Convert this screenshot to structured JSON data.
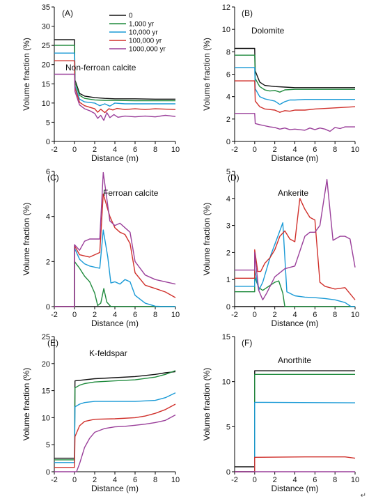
{
  "legend": [
    {
      "label": "0",
      "color": "#111111"
    },
    {
      "label": "1,000 yr",
      "color": "#1e8a3c"
    },
    {
      "label": "10,000 yr",
      "color": "#1a9ad6"
    },
    {
      "label": "100,000 yr",
      "color": "#d0302b"
    },
    {
      "label": "1000,000 yr",
      "color": "#9a3f9a"
    }
  ],
  "corner_mark": "↵",
  "chart_data": [
    {
      "type": "line",
      "panel": "(A)",
      "title": "Non-ferroan calcite",
      "xlabel": "Distance (m)",
      "ylabel": "Volume fraction (%)",
      "xlim": [
        -2,
        10
      ],
      "ylim": [
        0,
        35
      ],
      "xticks": [
        -2,
        0,
        2,
        4,
        6,
        8,
        10
      ],
      "yticks": [
        0,
        5,
        10,
        15,
        20,
        25,
        30,
        35
      ],
      "series": [
        {
          "name": "0",
          "color": "#111111",
          "x": [
            -2,
            0,
            0.05,
            0.5,
            1,
            2,
            3,
            4,
            6,
            8,
            10
          ],
          "y": [
            26.5,
            26.5,
            16,
            12.5,
            11.8,
            11.4,
            11.2,
            11.1,
            11.1,
            11,
            11
          ]
        },
        {
          "name": "1,000 yr",
          "color": "#1e8a3c",
          "x": [
            -2,
            0,
            0.05,
            0.5,
            1,
            2,
            3,
            4,
            6,
            8,
            10
          ],
          "y": [
            25,
            25,
            15.5,
            12,
            11.2,
            10.8,
            10.7,
            10.7,
            10.6,
            10.6,
            10.6
          ]
        },
        {
          "name": "10,000 yr",
          "color": "#1a9ad6",
          "x": [
            -2,
            0,
            0.05,
            0.5,
            1,
            2,
            2.5,
            3,
            3.5,
            4,
            5,
            6,
            8,
            10
          ],
          "y": [
            23,
            23,
            14.5,
            11,
            10.3,
            10,
            9.3,
            9.8,
            9.2,
            10,
            9.8,
            9.8,
            9.8,
            9.8
          ]
        },
        {
          "name": "100,000 yr",
          "color": "#d0302b",
          "x": [
            -2,
            0,
            0.05,
            0.5,
            1,
            1.5,
            2,
            2.3,
            2.6,
            3,
            3.4,
            3.8,
            4.2,
            5,
            6,
            7,
            8,
            10
          ],
          "y": [
            21,
            21,
            14,
            10.2,
            9.3,
            8.9,
            8.5,
            7.6,
            8.4,
            7.5,
            8.5,
            8.2,
            8.6,
            8.3,
            8.5,
            8.3,
            8.5,
            8.3
          ]
        },
        {
          "name": "1000,000 yr",
          "color": "#9a3f9a",
          "x": [
            -2,
            0,
            0.05,
            0.5,
            1,
            1.5,
            2,
            2.3,
            2.6,
            2.9,
            3.2,
            3.5,
            3.9,
            4.3,
            5,
            6,
            7,
            8,
            9,
            10
          ],
          "y": [
            17.5,
            17.5,
            13,
            9.5,
            8.5,
            8,
            7.3,
            6,
            6.8,
            5.5,
            7.5,
            6.2,
            7,
            6.3,
            6.6,
            6.4,
            6.6,
            6.4,
            6.8,
            6.5
          ]
        }
      ]
    },
    {
      "type": "line",
      "panel": "(B)",
      "title": "Dolomite",
      "xlabel": "Distance (m)",
      "ylabel": "Volume fraction (%)",
      "xlim": [
        -2,
        10
      ],
      "ylim": [
        0,
        12
      ],
      "xticks": [
        -2,
        0,
        2,
        4,
        6,
        8,
        10
      ],
      "yticks": [
        0,
        2,
        4,
        6,
        8,
        10,
        12
      ],
      "series": [
        {
          "name": "0",
          "color": "#111111",
          "x": [
            -2,
            0,
            0.05,
            0.5,
            1,
            2,
            3,
            4,
            6,
            8,
            10
          ],
          "y": [
            8.3,
            8.3,
            6.3,
            5.3,
            5,
            4.9,
            4.85,
            4.8,
            4.8,
            4.8,
            4.8
          ]
        },
        {
          "name": "1,000 yr",
          "color": "#1e8a3c",
          "x": [
            -2,
            0,
            0.05,
            0.5,
            1,
            1.5,
            2,
            2.5,
            3,
            4,
            6,
            8,
            10
          ],
          "y": [
            7.7,
            7.7,
            5.6,
            4.9,
            4.6,
            4.5,
            4.55,
            4.4,
            4.6,
            4.65,
            4.65,
            4.65,
            4.65
          ]
        },
        {
          "name": "10,000 yr",
          "color": "#1a9ad6",
          "x": [
            -2,
            0,
            0.05,
            0.5,
            1,
            1.5,
            2,
            2.5,
            3,
            3.5,
            4,
            5,
            6,
            8,
            10
          ],
          "y": [
            6.6,
            6.6,
            4.7,
            4,
            3.8,
            3.7,
            3.6,
            3.3,
            3.55,
            3.7,
            3.7,
            3.75,
            3.75,
            3.75,
            3.75
          ]
        },
        {
          "name": "100,000 yr",
          "color": "#d0302b",
          "x": [
            -2,
            0,
            0.05,
            0.5,
            1,
            1.5,
            2,
            2.5,
            3,
            3.5,
            4,
            5,
            6,
            8,
            10
          ],
          "y": [
            5.4,
            5.4,
            3.6,
            3.1,
            2.9,
            2.85,
            2.8,
            2.6,
            2.75,
            2.7,
            2.8,
            2.8,
            2.9,
            3,
            3.1
          ]
        },
        {
          "name": "1000,000 yr",
          "color": "#9a3f9a",
          "x": [
            -2,
            0,
            0.05,
            0.5,
            1,
            1.5,
            2,
            2.5,
            3,
            3.5,
            4,
            5,
            5.5,
            6,
            6.5,
            7,
            7.5,
            8,
            8.5,
            9,
            10
          ],
          "y": [
            2.5,
            2.5,
            1.6,
            1.5,
            1.4,
            1.3,
            1.25,
            1.1,
            1.2,
            1.05,
            1.1,
            1.0,
            1.2,
            1.05,
            1.2,
            1.1,
            0.9,
            1.25,
            1.15,
            1.3,
            1.3
          ]
        }
      ]
    },
    {
      "type": "line",
      "panel": "(C)",
      "title": "Ferroan calcite",
      "xlabel": "Distance (m)",
      "ylabel": "Volume fraction (%)",
      "xlim": [
        -2,
        10
      ],
      "ylim": [
        0,
        6
      ],
      "xticks": [
        -2,
        0,
        2,
        4,
        6,
        8,
        10
      ],
      "yticks": [
        0,
        2,
        4,
        6
      ],
      "series": [
        {
          "name": "0",
          "color": "#111111",
          "x": [
            -2,
            10
          ],
          "y": [
            0,
            0
          ]
        },
        {
          "name": "1,000 yr",
          "color": "#1e8a3c",
          "x": [
            -2,
            0,
            0,
            0.5,
            1,
            1.5,
            2,
            2.3,
            2.6,
            2.9,
            3.2,
            3.6,
            4,
            10
          ],
          "y": [
            0,
            0,
            2,
            1.7,
            1.35,
            1.1,
            0.6,
            0.05,
            0.15,
            0.8,
            0.2,
            0,
            0,
            0
          ]
        },
        {
          "name": "10,000 yr",
          "color": "#1a9ad6",
          "x": [
            -2,
            0,
            0,
            0.5,
            1,
            1.5,
            2,
            2.5,
            2.85,
            3.3,
            3.6,
            4,
            4.5,
            5,
            5.5,
            6,
            7,
            8,
            9,
            10
          ],
          "y": [
            0,
            0,
            2.6,
            2.1,
            1.9,
            1.8,
            1.75,
            1.7,
            3.4,
            2.2,
            1.05,
            1.1,
            1.0,
            1.2,
            1.1,
            0.5,
            0.15,
            0.02,
            0,
            0
          ]
        },
        {
          "name": "100,000 yr",
          "color": "#d0302b",
          "x": [
            -2,
            0,
            0,
            0.5,
            1,
            1.5,
            2,
            2.5,
            2.85,
            3.5,
            4,
            4.5,
            5,
            5.5,
            6,
            7,
            8,
            9,
            10
          ],
          "y": [
            0,
            0,
            2.7,
            2.3,
            2.25,
            2.2,
            2.3,
            2.4,
            5.0,
            4.0,
            3.5,
            3.3,
            3.2,
            2.8,
            1.5,
            0.95,
            0.8,
            0.65,
            0.4
          ]
        },
        {
          "name": "1000,000 yr",
          "color": "#9a3f9a",
          "x": [
            -2,
            0,
            0,
            0.5,
            1,
            1.5,
            2,
            2.5,
            2.85,
            3.5,
            4,
            4.5,
            5,
            5.5,
            6,
            7,
            8,
            9,
            10
          ],
          "y": [
            0,
            0,
            2.75,
            2.5,
            2.9,
            3.0,
            3.0,
            3.0,
            5.95,
            3.8,
            3.6,
            3.7,
            3.5,
            3.3,
            2.0,
            1.4,
            1.2,
            1.1,
            1.0
          ]
        }
      ]
    },
    {
      "type": "line",
      "panel": "(D)",
      "title": "Ankerite",
      "xlabel": "Distance (m)",
      "ylabel": "Volume fraction (%)",
      "xlim": [
        -2,
        10
      ],
      "ylim": [
        0,
        5
      ],
      "xticks": [
        -2,
        0,
        2,
        4,
        6,
        8,
        10
      ],
      "yticks": [
        0,
        1,
        2,
        3,
        4,
        5
      ],
      "series": [
        {
          "name": "0",
          "color": "#111111",
          "x": [
            -2,
            10
          ],
          "y": [
            0,
            0
          ]
        },
        {
          "name": "1,000 yr",
          "color": "#1e8a3c",
          "x": [
            -2,
            0,
            0,
            0.4,
            0.8,
            1.2,
            1.6,
            2,
            2.4,
            2.8,
            3,
            10
          ],
          "y": [
            0.55,
            0.55,
            1.1,
            0.7,
            0.6,
            0.7,
            0.8,
            0.9,
            0.95,
            0.5,
            0,
            0
          ]
        },
        {
          "name": "10,000 yr",
          "color": "#1a9ad6",
          "x": [
            -2,
            0,
            0,
            0.4,
            0.8,
            1.2,
            1.6,
            2,
            2.5,
            2.8,
            3.2,
            4,
            5,
            6,
            7,
            8,
            9,
            9.6,
            10
          ],
          "y": [
            0.75,
            0.75,
            1.4,
            0.6,
            0.9,
            1.4,
            1.9,
            2.3,
            2.8,
            3.1,
            0.55,
            0.4,
            0.35,
            0.33,
            0.3,
            0.25,
            0.15,
            0,
            0
          ]
        },
        {
          "name": "100,000 yr",
          "color": "#d0302b",
          "x": [
            -2,
            0,
            0,
            0.3,
            0.6,
            1,
            1.5,
            2,
            2.5,
            3,
            3.5,
            4,
            4.5,
            5,
            5.5,
            6,
            6.5,
            7,
            8,
            9,
            10
          ],
          "y": [
            1.05,
            1.05,
            2.1,
            1.3,
            1.3,
            1.6,
            1.8,
            2.1,
            2.6,
            2.8,
            2.5,
            2.4,
            4.0,
            3.6,
            3.3,
            3.2,
            0.9,
            0.75,
            0.65,
            0.7,
            0.25
          ]
        },
        {
          "name": "1000,000 yr",
          "color": "#9a3f9a",
          "x": [
            -2,
            0,
            0,
            0.4,
            0.8,
            1.2,
            2,
            3,
            4,
            5,
            5.5,
            6,
            6.5,
            7.2,
            7.8,
            8.5,
            9,
            9.5,
            10
          ],
          "y": [
            1.35,
            1.35,
            2.0,
            0.6,
            0.25,
            0.5,
            1.1,
            1.4,
            1.5,
            2.6,
            2.75,
            2.75,
            3.0,
            4.7,
            2.45,
            2.6,
            2.6,
            2.5,
            1.45
          ]
        }
      ]
    },
    {
      "type": "line",
      "panel": "(E)",
      "title": "K-feldspar",
      "xlabel": "Distance (m)",
      "ylabel": "Volume fraction (%)",
      "xlim": [
        -2,
        10
      ],
      "ylim": [
        0,
        25
      ],
      "xticks": [
        -2,
        0,
        2,
        4,
        6,
        8,
        10
      ],
      "yticks": [
        0,
        5,
        10,
        15,
        20,
        25
      ],
      "series": [
        {
          "name": "0",
          "color": "#111111",
          "x": [
            -2,
            0,
            0.05,
            1,
            2,
            4,
            6,
            8,
            9,
            10
          ],
          "y": [
            2.5,
            2.5,
            16.8,
            17,
            17.2,
            17.4,
            17.6,
            18,
            18.3,
            18.5
          ]
        },
        {
          "name": "1,000 yr",
          "color": "#1e8a3c",
          "x": [
            -2,
            0,
            0.05,
            0.5,
            1,
            2,
            4,
            6,
            8,
            9,
            10
          ],
          "y": [
            2.2,
            2.2,
            15.5,
            16,
            16.3,
            16.6,
            16.8,
            17,
            17.5,
            18,
            18.7
          ]
        },
        {
          "name": "10,000 yr",
          "color": "#1a9ad6",
          "x": [
            -2,
            0,
            0.05,
            0.5,
            1,
            2,
            4,
            6,
            8,
            9,
            10
          ],
          "y": [
            1.7,
            1.7,
            12,
            12.5,
            12.8,
            13,
            13,
            13,
            13.2,
            13.7,
            14.6
          ]
        },
        {
          "name": "100,000 yr",
          "color": "#d0302b",
          "x": [
            -2,
            0,
            0.05,
            0.5,
            1,
            2,
            4,
            6,
            7,
            8,
            9,
            10
          ],
          "y": [
            0.8,
            0.8,
            6.5,
            8.5,
            9.3,
            9.7,
            9.8,
            10,
            10.3,
            10.8,
            11.5,
            12.5
          ]
        },
        {
          "name": "1000,000 yr",
          "color": "#9a3f9a",
          "x": [
            -2,
            0.2,
            0.5,
            1,
            1.5,
            2,
            3,
            4,
            5,
            6,
            7,
            8,
            9,
            10
          ],
          "y": [
            0,
            0,
            1.5,
            4.5,
            6.2,
            7.3,
            8,
            8.3,
            8.4,
            8.6,
            8.8,
            9.1,
            9.5,
            10.5
          ]
        }
      ]
    },
    {
      "type": "line",
      "panel": "(F)",
      "title": "Anorthite",
      "xlabel": "Distance (m)",
      "ylabel": "Volume fraction (%)",
      "xlim": [
        -2,
        10
      ],
      "ylim": [
        0,
        15
      ],
      "xticks": [
        -2,
        0,
        2,
        4,
        6,
        8,
        10
      ],
      "yticks": [
        0,
        5,
        10,
        15
      ],
      "series": [
        {
          "name": "0",
          "color": "#111111",
          "x": [
            -2,
            0,
            0,
            10
          ],
          "y": [
            0.55,
            0.55,
            11.2,
            11.2
          ]
        },
        {
          "name": "1,000 yr",
          "color": "#1e8a3c",
          "x": [
            -2,
            0,
            0,
            10
          ],
          "y": [
            0,
            0,
            10.8,
            10.8
          ]
        },
        {
          "name": "10,000 yr",
          "color": "#1a9ad6",
          "x": [
            -2,
            0,
            0,
            10
          ],
          "y": [
            0,
            0,
            7.7,
            7.65
          ]
        },
        {
          "name": "100,000 yr",
          "color": "#d0302b",
          "x": [
            -2,
            0,
            0,
            5,
            9,
            10
          ],
          "y": [
            0,
            0,
            1.6,
            1.65,
            1.65,
            1.5
          ]
        },
        {
          "name": "1000,000 yr",
          "color": "#9a3f9a",
          "x": [
            -2,
            10
          ],
          "y": [
            0,
            0
          ]
        }
      ]
    }
  ]
}
